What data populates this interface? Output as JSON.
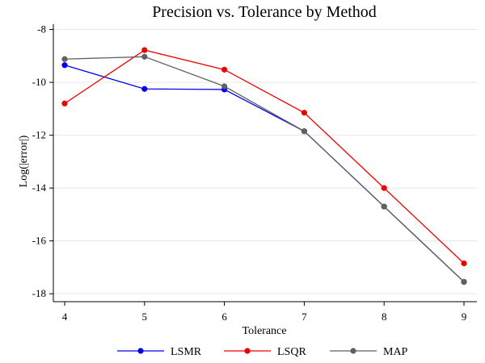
{
  "chart_data": {
    "type": "line",
    "title": "Precision vs. Tolerance by Method",
    "xlabel": "Tolerance",
    "ylabel": "Log(|error|)",
    "x": [
      4,
      5,
      6,
      7,
      8,
      9
    ],
    "xlim": [
      4,
      9
    ],
    "ylim": [
      -18.3,
      -7.8
    ],
    "yticks": [
      -8,
      -10,
      -12,
      -14,
      -16,
      -18
    ],
    "xticks": [
      4,
      5,
      6,
      7,
      8,
      9
    ],
    "grid": true,
    "legend_position": "bottom",
    "series": [
      {
        "name": "LSMR",
        "color": "#0000ee",
        "values": [
          -9.35,
          -10.25,
          -10.27,
          -11.85,
          -14.7,
          -17.55
        ]
      },
      {
        "name": "LSQR",
        "color": "#ee0000",
        "values": [
          -10.8,
          -8.78,
          -9.52,
          -11.15,
          -14.0,
          -16.85
        ]
      },
      {
        "name": "MAP",
        "color": "#606060",
        "values": [
          -9.12,
          -9.03,
          -10.15,
          -11.85,
          -14.7,
          -17.55
        ]
      }
    ]
  }
}
